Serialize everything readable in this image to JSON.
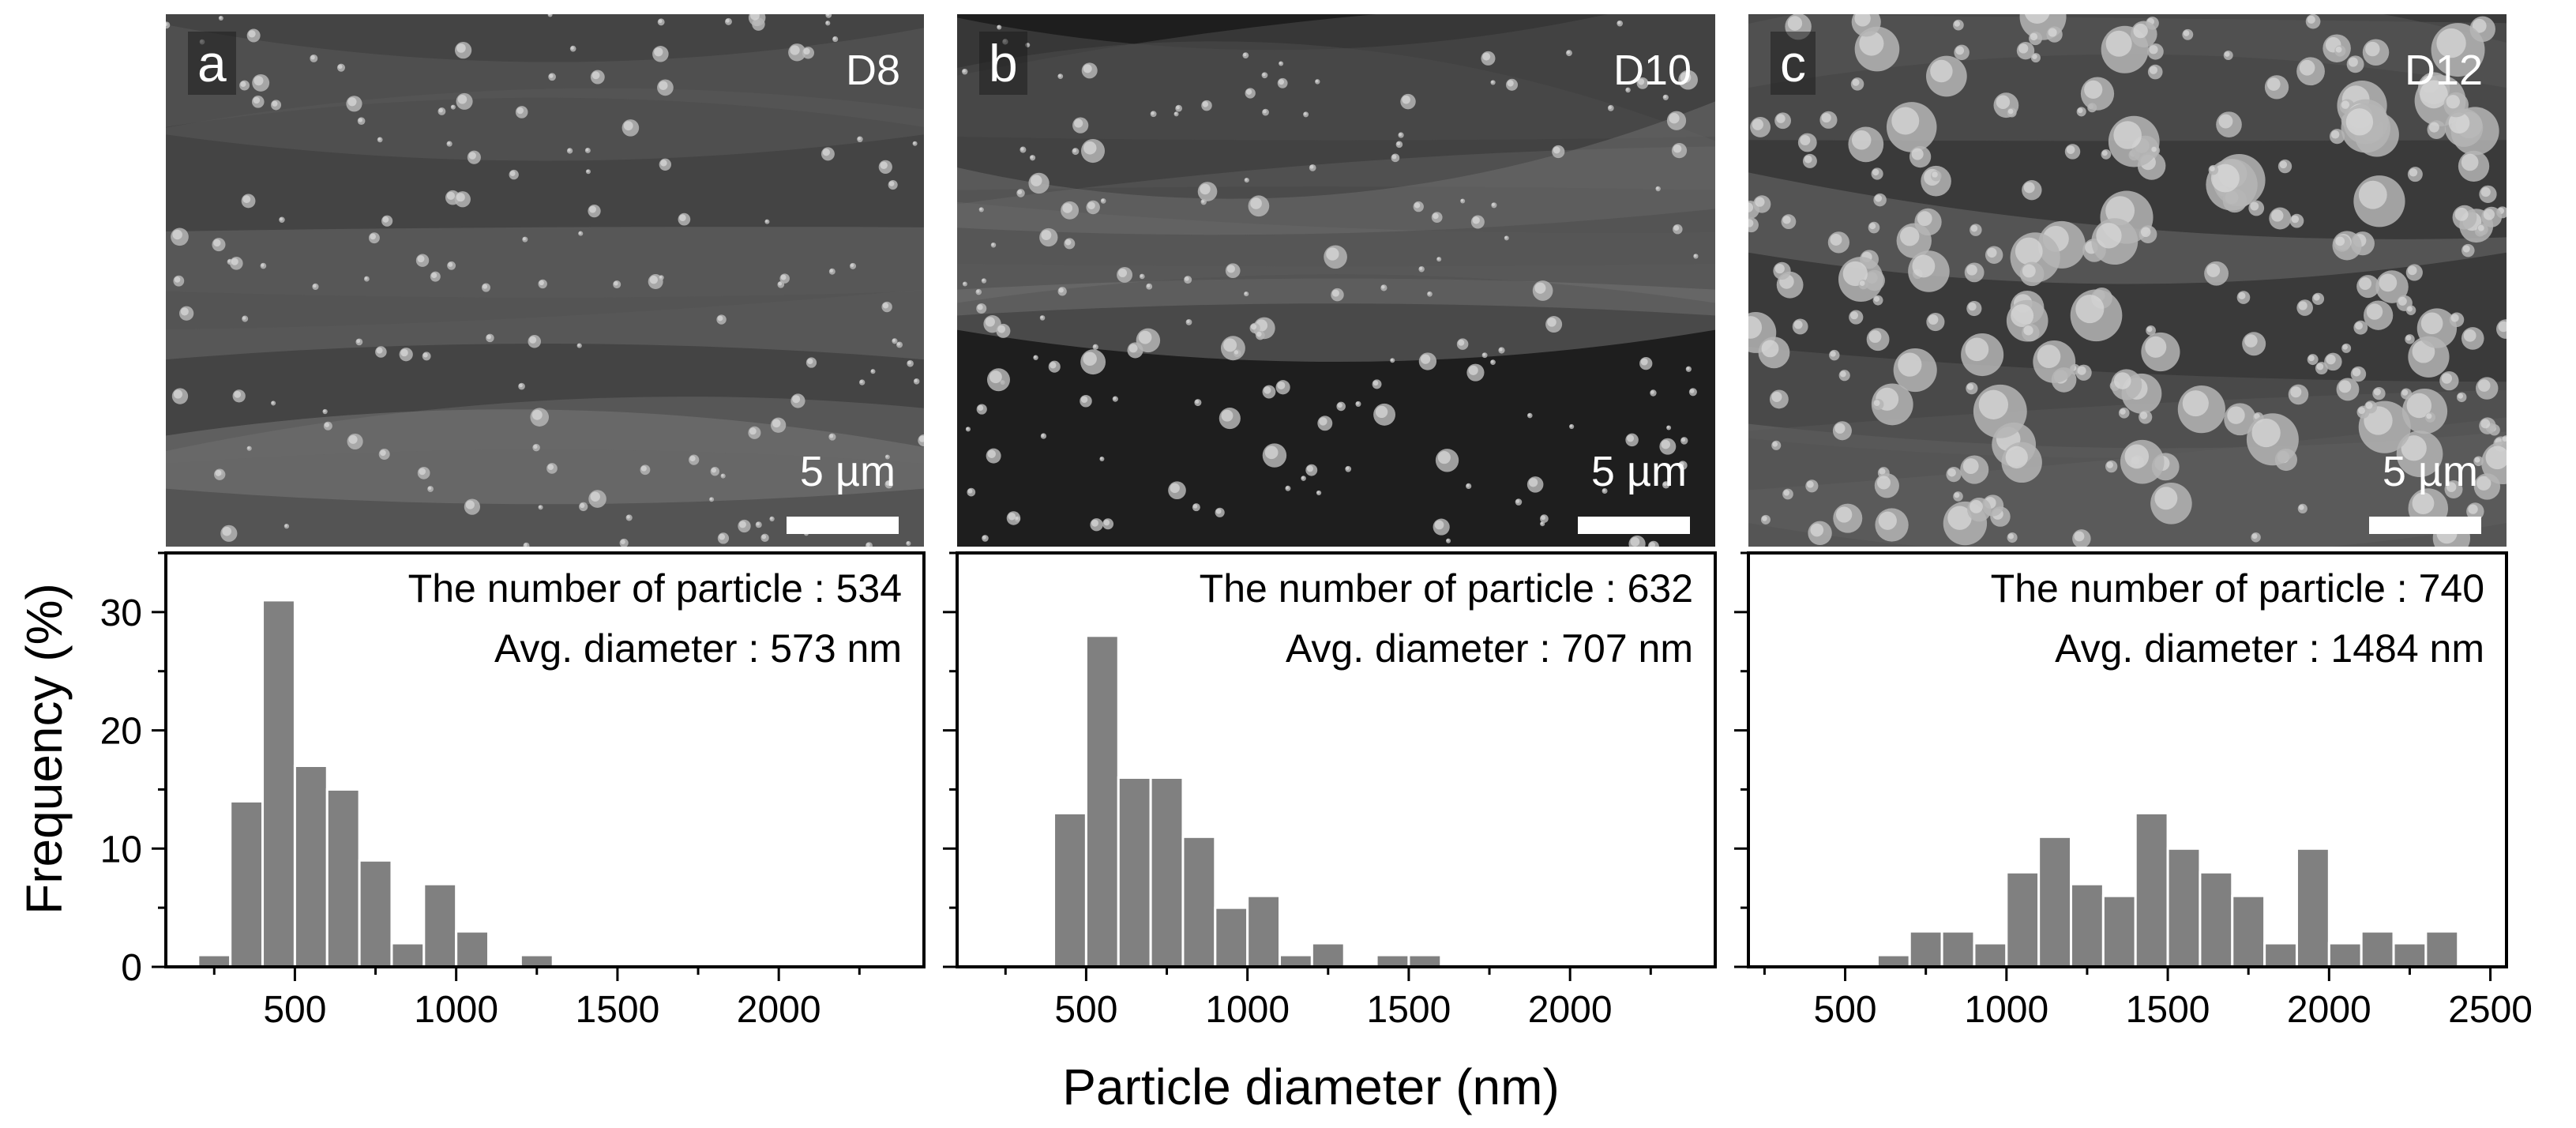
{
  "figure": {
    "ylabel": "Frequency (%)",
    "xlabel": "Particle diameter (nm)",
    "bar_color": "#808080",
    "axis_color": "#000000"
  },
  "panels": [
    {
      "letter": "a",
      "sample": "D8",
      "scale": "5 µm",
      "count_text": "The number of particle : 534",
      "avg_text": "Avg. diameter : 573 nm"
    },
    {
      "letter": "b",
      "sample": "D10",
      "scale": "5 µm",
      "count_text": "The number of particle : 632",
      "avg_text": "Avg. diameter : 707 nm"
    },
    {
      "letter": "c",
      "sample": "D12",
      "scale": "5 µm",
      "count_text": "The number of particle : 740",
      "avg_text": "Avg. diameter : 1484 nm"
    }
  ],
  "chart_data": [
    {
      "type": "bar",
      "title": "",
      "xlabel": "Particle diameter (nm)",
      "ylabel": "Frequency (%)",
      "xlim": [
        100,
        2450
      ],
      "ylim": [
        0,
        35
      ],
      "xticks": [
        500,
        1000,
        1500,
        2000
      ],
      "yticks": [
        0,
        10,
        20,
        30
      ],
      "bin_width": 100,
      "x": [
        250,
        350,
        450,
        550,
        650,
        750,
        850,
        950,
        1050,
        1250
      ],
      "values": [
        1,
        14,
        31,
        17,
        15,
        9,
        2,
        7,
        3,
        1
      ],
      "annotations": [
        "The number of particle : 534",
        "Avg. diameter : 573 nm"
      ]
    },
    {
      "type": "bar",
      "title": "",
      "xlabel": "Particle diameter (nm)",
      "ylabel": "Frequency (%)",
      "xlim": [
        100,
        2450
      ],
      "ylim": [
        0,
        35
      ],
      "xticks": [
        500,
        1000,
        1500,
        2000
      ],
      "yticks": [
        0,
        10,
        20,
        30
      ],
      "bin_width": 100,
      "x": [
        450,
        550,
        650,
        750,
        850,
        950,
        1050,
        1150,
        1250,
        1450,
        1550
      ],
      "values": [
        13,
        28,
        16,
        16,
        11,
        5,
        6,
        1,
        2,
        1,
        1
      ],
      "annotations": [
        "The number of particle : 632",
        "Avg. diameter : 707 nm"
      ]
    },
    {
      "type": "bar",
      "title": "",
      "xlabel": "Particle diameter (nm)",
      "ylabel": "Frequency (%)",
      "xlim": [
        200,
        2550
      ],
      "ylim": [
        0,
        35
      ],
      "xticks": [
        500,
        1000,
        1500,
        2000,
        2500
      ],
      "yticks": [
        0,
        10,
        20,
        30
      ],
      "bin_width": 100,
      "x": [
        650,
        750,
        850,
        950,
        1050,
        1150,
        1250,
        1350,
        1450,
        1550,
        1650,
        1750,
        1850,
        1950,
        2050,
        2150,
        2250,
        2350
      ],
      "values": [
        1,
        3,
        3,
        2,
        8,
        11,
        7,
        6,
        13,
        10,
        8,
        6,
        2,
        10,
        2,
        3,
        2,
        3
      ],
      "annotations": [
        "The number of particle : 740",
        "Avg. diameter : 1484 nm"
      ]
    }
  ]
}
